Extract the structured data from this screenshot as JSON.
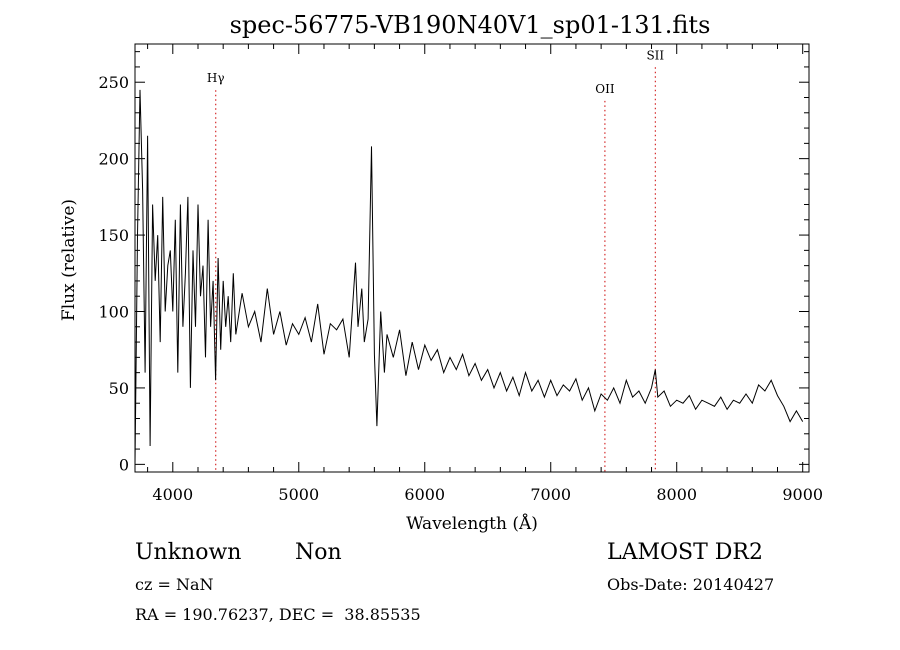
{
  "chart_data": {
    "type": "line",
    "title": "spec-56775-VB190N40V1_sp01-131.fits",
    "xlabel": "Wavelength (Å)",
    "ylabel": "Flux (relative)",
    "xlim": [
      3700,
      9050
    ],
    "ylim": [
      -5,
      275
    ],
    "x_ticks": [
      4000,
      5000,
      6000,
      7000,
      8000,
      9000
    ],
    "y_ticks": [
      0,
      50,
      100,
      150,
      200,
      250
    ],
    "grid": false,
    "line_color": "#000000",
    "marker_color": "#cc0000",
    "lines": [
      {
        "label": "Hγ",
        "x": 4341,
        "label_y": 250
      },
      {
        "label": "OII",
        "x": 7430,
        "label_y": 243
      },
      {
        "label": "SII",
        "x": 7830,
        "label_y": 265
      }
    ],
    "series": [
      {
        "x": [
          3700,
          3720,
          3740,
          3760,
          3780,
          3800,
          3820,
          3840,
          3860,
          3880,
          3900,
          3920,
          3940,
          3960,
          3980,
          4000,
          4020,
          4040,
          4060,
          4080,
          4100,
          4120,
          4140,
          4160,
          4180,
          4200,
          4220,
          4240,
          4260,
          4280,
          4300,
          4320,
          4340,
          4360,
          4380,
          4400,
          4420,
          4440,
          4460,
          4480,
          4500,
          4550,
          4600,
          4650,
          4700,
          4750,
          4800,
          4850,
          4900,
          4950,
          5000,
          5050,
          5100,
          5150,
          5200,
          5250,
          5300,
          5350,
          5400,
          5450,
          5470,
          5500,
          5520,
          5550,
          5577,
          5600,
          5620,
          5650,
          5680,
          5700,
          5750,
          5800,
          5850,
          5900,
          5950,
          6000,
          6050,
          6100,
          6150,
          6200,
          6250,
          6300,
          6350,
          6400,
          6450,
          6500,
          6550,
          6600,
          6650,
          6700,
          6750,
          6800,
          6850,
          6900,
          6950,
          7000,
          7050,
          7100,
          7150,
          7200,
          7250,
          7300,
          7350,
          7400,
          7450,
          7500,
          7550,
          7600,
          7650,
          7700,
          7750,
          7800,
          7830,
          7850,
          7900,
          7950,
          8000,
          8050,
          8100,
          8150,
          8200,
          8250,
          8300,
          8350,
          8400,
          8450,
          8500,
          8550,
          8600,
          8650,
          8700,
          8750,
          8800,
          8850,
          8900,
          8950,
          9000
        ],
        "y": [
          0,
          150,
          245,
          180,
          60,
          215,
          12,
          170,
          120,
          150,
          80,
          175,
          100,
          130,
          140,
          100,
          160,
          60,
          170,
          90,
          125,
          175,
          50,
          140,
          90,
          170,
          110,
          130,
          70,
          160,
          90,
          120,
          55,
          135,
          75,
          120,
          90,
          110,
          80,
          125,
          85,
          112,
          90,
          100,
          80,
          115,
          85,
          100,
          78,
          92,
          85,
          96,
          80,
          105,
          72,
          92,
          88,
          95,
          70,
          132,
          90,
          115,
          80,
          95,
          208,
          72,
          25,
          100,
          60,
          85,
          70,
          88,
          58,
          80,
          62,
          78,
          68,
          75,
          60,
          70,
          62,
          72,
          58,
          66,
          55,
          62,
          50,
          60,
          48,
          57,
          45,
          60,
          48,
          55,
          44,
          55,
          45,
          52,
          48,
          56,
          42,
          50,
          35,
          46,
          42,
          50,
          40,
          55,
          44,
          48,
          40,
          50,
          62,
          44,
          48,
          38,
          42,
          40,
          45,
          36,
          42,
          40,
          38,
          44,
          36,
          42,
          40,
          46,
          40,
          52,
          48,
          55,
          45,
          38,
          28,
          35,
          28
        ]
      }
    ]
  },
  "info": {
    "class_label": "Unknown",
    "subclass_label": "Non",
    "survey": "LAMOST DR2",
    "cz": "cz = NaN",
    "obs_date": "Obs-Date: 20140427",
    "coords": "RA = 190.76237, DEC =  38.85535"
  }
}
